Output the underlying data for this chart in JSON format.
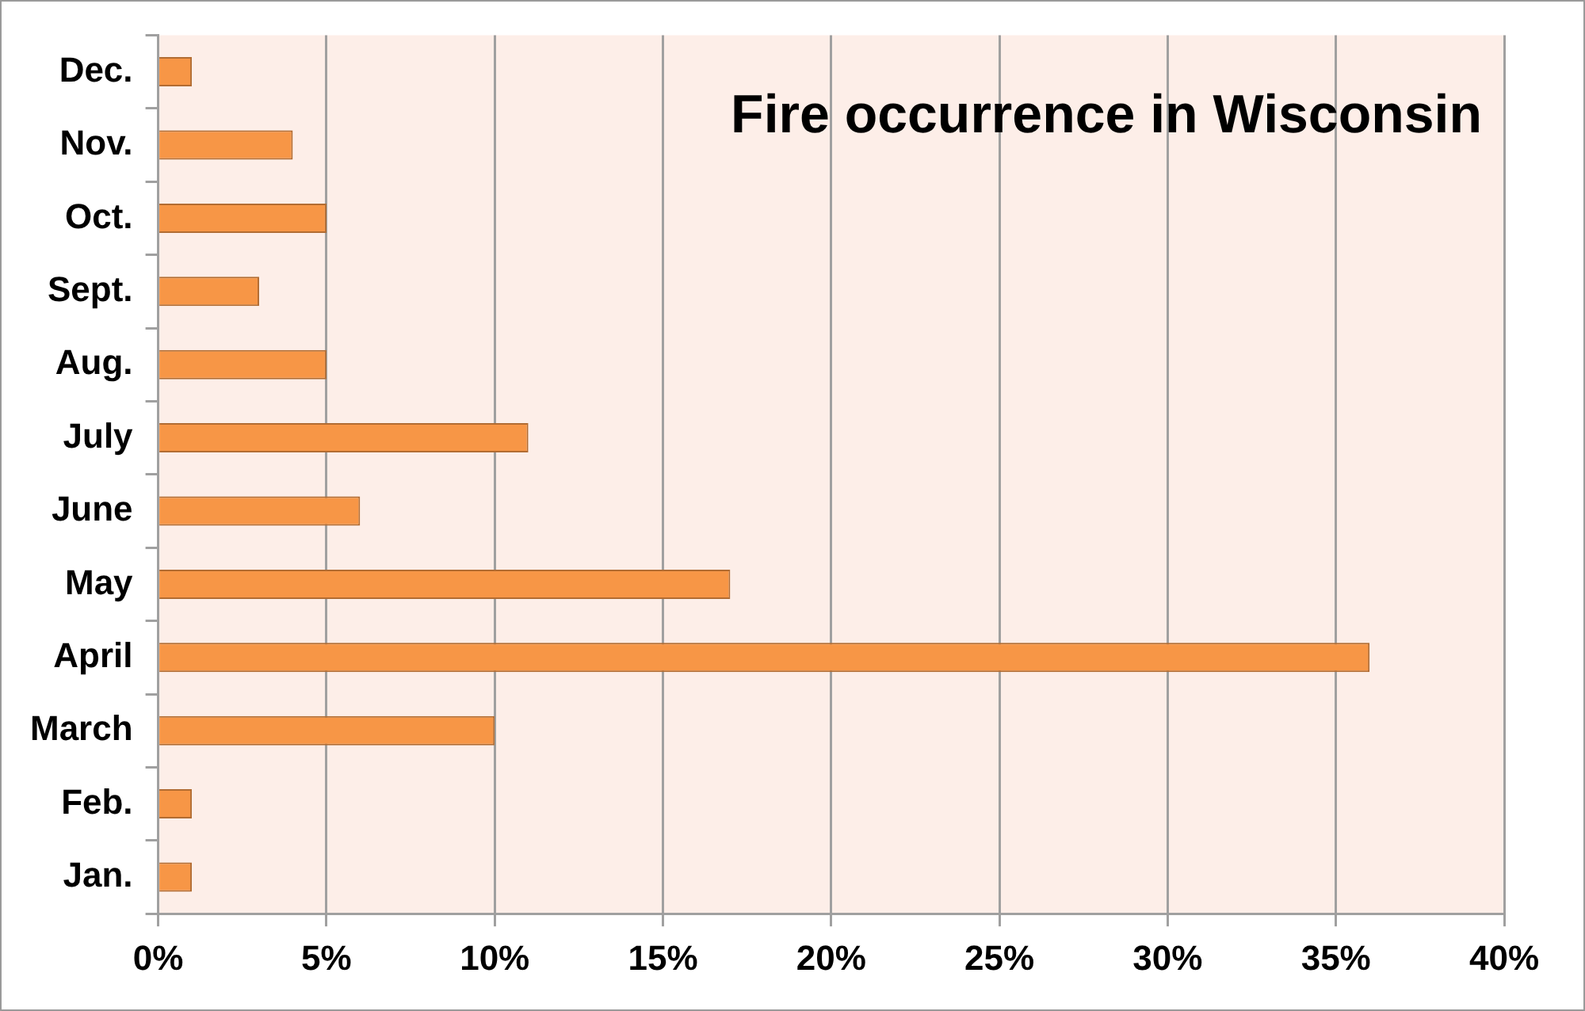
{
  "chart_data": {
    "type": "bar",
    "orientation": "horizontal",
    "title": "Fire occurrence in Wisconsin",
    "categories": [
      "Dec.",
      "Nov.",
      "Oct.",
      "Sept.",
      "Aug.",
      "July",
      "June",
      "May",
      "April",
      "March",
      "Feb.",
      "Jan."
    ],
    "values": [
      1,
      4,
      5,
      3,
      5,
      11,
      6,
      17,
      36,
      10,
      1,
      1
    ],
    "color": "#f79646",
    "xlim": [
      0,
      40
    ],
    "xticks": [
      {
        "value": 0,
        "label": "0%"
      },
      {
        "value": 5,
        "label": "5%"
      },
      {
        "value": 10,
        "label": "10%"
      },
      {
        "value": 15,
        "label": "15%"
      },
      {
        "value": 20,
        "label": "20%"
      },
      {
        "value": 25,
        "label": "25%"
      },
      {
        "value": 30,
        "label": "30%"
      },
      {
        "value": 35,
        "label": "35%"
      },
      {
        "value": 40,
        "label": "40%"
      }
    ],
    "grid": "x"
  }
}
